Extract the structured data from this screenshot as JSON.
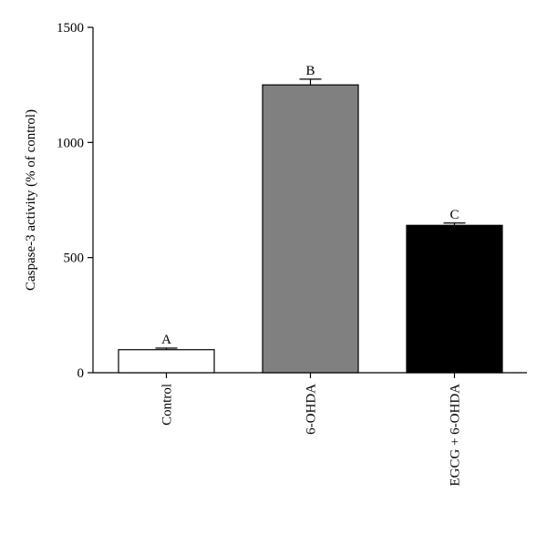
{
  "chart_data": {
    "type": "bar",
    "y_label": "Caspase-3 activity (% of control)",
    "categories": [
      "Control",
      "6-OHDA",
      "EGCG + 6-OHDA"
    ],
    "values": [
      100,
      1250,
      640
    ],
    "errors": [
      7,
      25,
      10
    ],
    "group_labels": [
      "A",
      "B",
      "C"
    ],
    "colors": [
      "#ffffff",
      "#808080",
      "#000000"
    ],
    "ylim": [
      0,
      1500
    ],
    "yticks": [
      0,
      500,
      1000,
      1500
    ],
    "grid": false
  }
}
